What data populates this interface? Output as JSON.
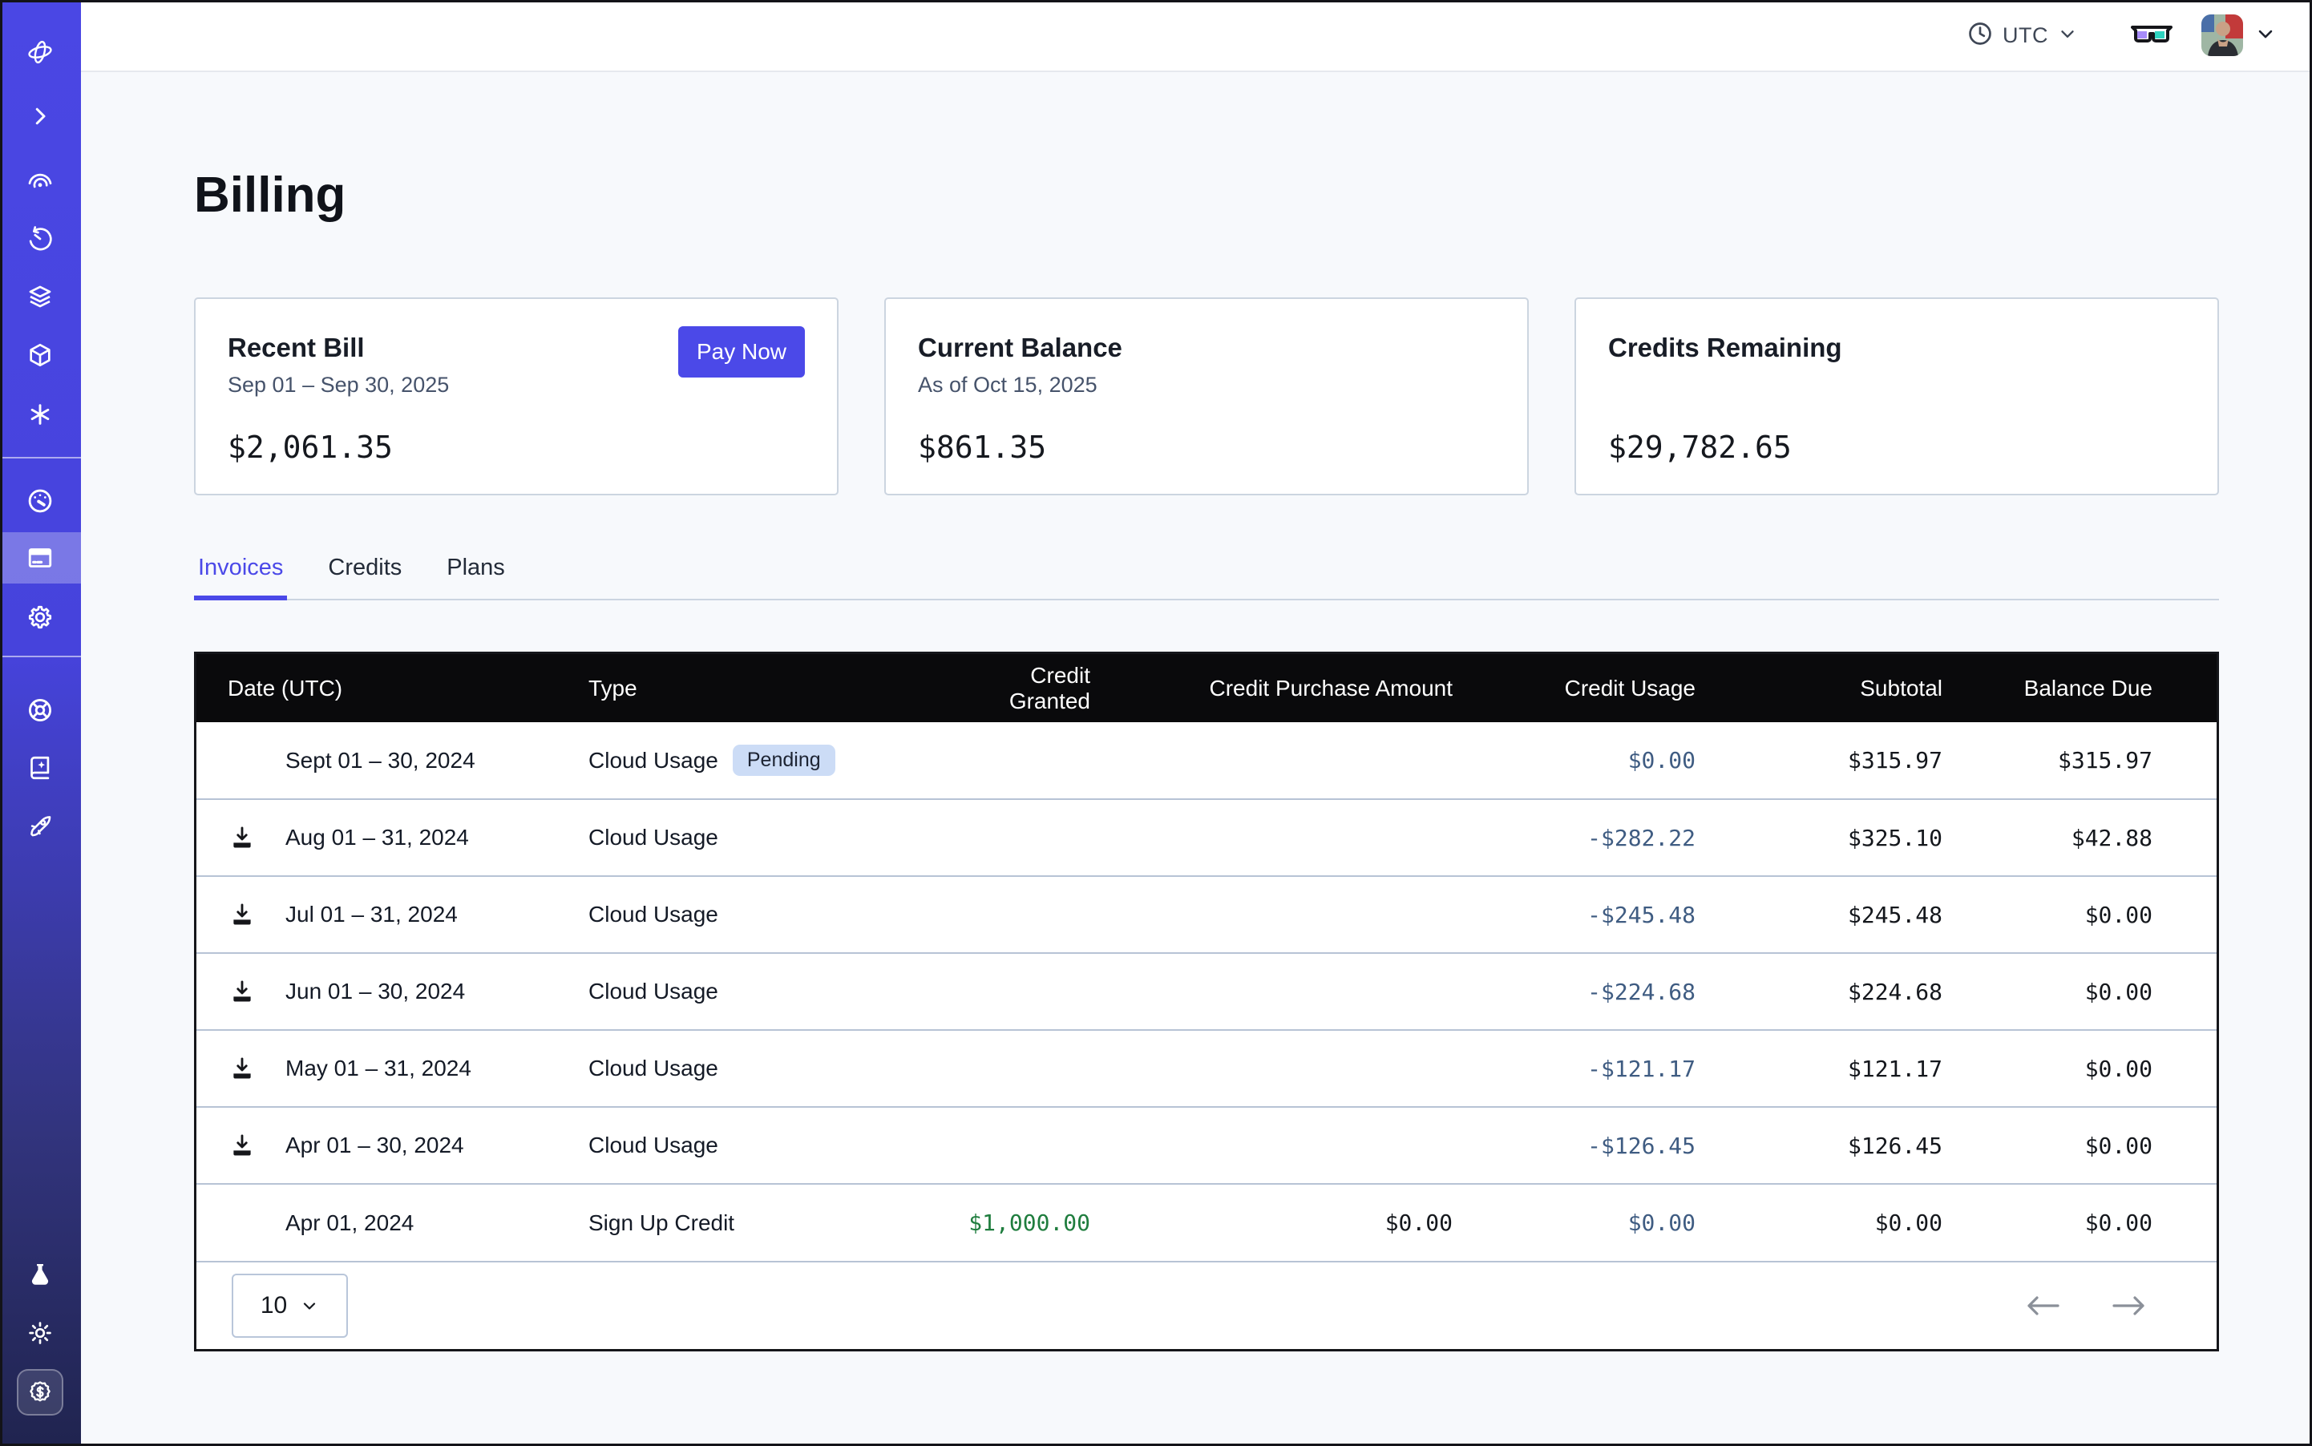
{
  "topbar": {
    "timezone": "UTC",
    "icons": [
      "clock-icon",
      "chevron-down-icon",
      "glasses-icon",
      "avatar",
      "chevron-down-icon"
    ]
  },
  "page": {
    "title": "Billing"
  },
  "cards": [
    {
      "title": "Recent Bill",
      "subtitle": "Sep 01 – Sep 30, 2025",
      "amount": "$2,061.35",
      "action": "Pay Now"
    },
    {
      "title": "Current Balance",
      "subtitle": "As of Oct 15, 2025",
      "amount": "$861.35"
    },
    {
      "title": "Credits Remaining",
      "subtitle": "",
      "amount": "$29,782.65"
    }
  ],
  "tabs": [
    {
      "label": "Invoices",
      "active": true
    },
    {
      "label": "Credits",
      "active": false
    },
    {
      "label": "Plans",
      "active": false
    }
  ],
  "invoices_table": {
    "columns": [
      "Date (UTC)",
      "Type",
      "Credit Granted",
      "Credit Purchase Amount",
      "Credit Usage",
      "Subtotal",
      "Balance Due"
    ],
    "rows": [
      {
        "date": "Sept 01 – 30, 2024",
        "download": false,
        "type": "Cloud Usage",
        "badge": "Pending",
        "credit_granted": "",
        "credit_purchase": "",
        "credit_usage": "$0.00",
        "subtotal": "$315.97",
        "balance_due": "$315.97"
      },
      {
        "date": "Aug 01 – 31, 2024",
        "download": true,
        "type": "Cloud Usage",
        "badge": "",
        "credit_granted": "",
        "credit_purchase": "",
        "credit_usage": "-$282.22",
        "subtotal": "$325.10",
        "balance_due": "$42.88"
      },
      {
        "date": "Jul 01 – 31, 2024",
        "download": true,
        "type": "Cloud Usage",
        "badge": "",
        "credit_granted": "",
        "credit_purchase": "",
        "credit_usage": "-$245.48",
        "subtotal": "$245.48",
        "balance_due": "$0.00"
      },
      {
        "date": "Jun 01 – 30, 2024",
        "download": true,
        "type": "Cloud Usage",
        "badge": "",
        "credit_granted": "",
        "credit_purchase": "",
        "credit_usage": "-$224.68",
        "subtotal": "$224.68",
        "balance_due": "$0.00"
      },
      {
        "date": "May 01 – 31, 2024",
        "download": true,
        "type": "Cloud Usage",
        "badge": "",
        "credit_granted": "",
        "credit_purchase": "",
        "credit_usage": "-$121.17",
        "subtotal": "$121.17",
        "balance_due": "$0.00"
      },
      {
        "date": "Apr 01 – 30, 2024",
        "download": true,
        "type": "Cloud Usage",
        "badge": "",
        "credit_granted": "",
        "credit_purchase": "",
        "credit_usage": "-$126.45",
        "subtotal": "$126.45",
        "balance_due": "$0.00"
      },
      {
        "date": "Apr 01, 2024",
        "download": false,
        "type": "Sign Up Credit",
        "badge": "",
        "credit_granted": "$1,000.00",
        "credit_purchase": "$0.00",
        "credit_usage": "$0.00",
        "subtotal": "$0.00",
        "balance_due": "$0.00"
      }
    ],
    "page_size": "10"
  },
  "sidebar": {
    "icons": [
      "logo-orbit-icon",
      "chevron-right-icon",
      "observe-eye-icon",
      "history-icon",
      "layers-icon",
      "cube-icon",
      "asterisk-icon",
      "gauge-icon",
      "billing-card-icon",
      "gear-icon",
      "wheel-icon",
      "book-sparkle-icon",
      "rocket-icon",
      "flask-icon",
      "sun-icon",
      "dollar-badge-icon"
    ],
    "active_item": "billing"
  },
  "colors": {
    "accent": "#4b49e8",
    "sidebar_top": "#4a47e4",
    "sidebar_bottom": "#20244f",
    "table_header_bg": "#0a0a0c",
    "badge_bg": "#ccdcf6",
    "credit_usage_text": "#3f5c82",
    "credit_granted_text": "#1f7d3e",
    "row_divider": "#b7c3d5",
    "page_bg": "#f7f9fc"
  }
}
